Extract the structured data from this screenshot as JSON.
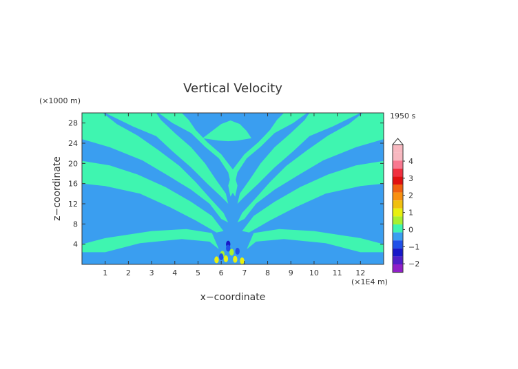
{
  "chart_data": {
    "type": "heatmap",
    "title": "Vertical Velocity",
    "time_label": "1950 s",
    "xlabel": "x−coordinate",
    "ylabel": "z−coordinate",
    "x_unit": "(×1E4 m)",
    "y_unit": "(×1000 m)",
    "xlim": [
      0,
      13
    ],
    "ylim": [
      0,
      30
    ],
    "x_ticks": [
      1,
      2,
      3,
      4,
      5,
      6,
      7,
      8,
      9,
      10,
      11,
      12
    ],
    "y_ticks": [
      4,
      8,
      12,
      16,
      20,
      24,
      28
    ],
    "background_color": "#3a9ef0",
    "band_color": "#3ff5b0",
    "colorbar": {
      "labels": [
        "4",
        "3",
        "2",
        "1",
        "0",
        "−1",
        "−2"
      ],
      "levels": [
        {
          "value": 5.0,
          "color": "#f8b8c0"
        },
        {
          "value": 4.5,
          "color": "#f8b8c0"
        },
        {
          "value": 4.0,
          "color": "#f87890"
        },
        {
          "value": 3.5,
          "color": "#f03040"
        },
        {
          "value": 3.0,
          "color": "#e01010"
        },
        {
          "value": 2.5,
          "color": "#f06010"
        },
        {
          "value": 2.0,
          "color": "#f89010"
        },
        {
          "value": 1.5,
          "color": "#f0c010"
        },
        {
          "value": 1.0,
          "color": "#e8f010"
        },
        {
          "value": 0.5,
          "color": "#a8f030"
        },
        {
          "value": 0.0,
          "color": "#3ff5b0"
        },
        {
          "value": -0.5,
          "color": "#3a9ef0"
        },
        {
          "value": -1.0,
          "color": "#2050e8"
        },
        {
          "value": -1.5,
          "color": "#1818c8"
        },
        {
          "value": -2.0,
          "color": "#5020c8"
        },
        {
          "value": -2.5,
          "color": "#9020c8"
        }
      ]
    }
  }
}
